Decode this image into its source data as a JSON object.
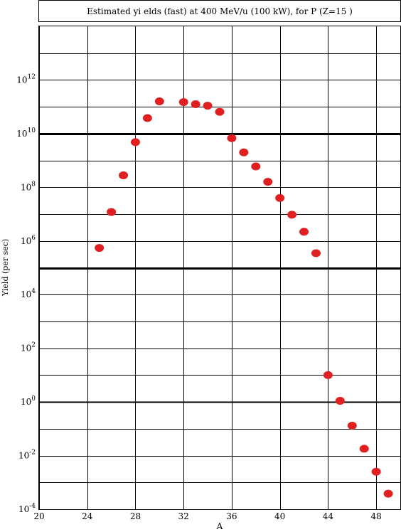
{
  "chart_data": {
    "type": "scatter",
    "title": "Estimated yi elds (fast) at 400 MeV/u (100 kW), for P (Z=15 )",
    "xlabel": "A",
    "ylabel": "Yield (per sec)",
    "xlim": [
      20,
      50
    ],
    "ylim_log10": [
      -4,
      14
    ],
    "y_scale": "log",
    "grid": true,
    "x_ticks": [
      20,
      24,
      28,
      32,
      36,
      40,
      44,
      48
    ],
    "y_ticks": [
      {
        "base": "10",
        "exp": "12",
        "log": 12
      },
      {
        "base": "10",
        "exp": "10",
        "log": 10
      },
      {
        "base": "10",
        "exp": "8",
        "log": 8
      },
      {
        "base": "10",
        "exp": "6",
        "log": 6
      },
      {
        "base": "10",
        "exp": "4",
        "log": 4
      },
      {
        "base": "10",
        "exp": "2",
        "log": 2
      },
      {
        "base": "10",
        "exp": "0",
        "log": 0
      },
      {
        "base": "10",
        "exp": "-2",
        "log": -2
      },
      {
        "base": "10",
        "exp": "-4",
        "log": -4
      }
    ],
    "thick_lines_log": [
      10,
      5
    ],
    "medium_lines_log": [
      0
    ],
    "marker_color": "#e02020",
    "points": [
      {
        "A": 25,
        "yield": 550000.0
      },
      {
        "A": 26,
        "yield": 12000000.0
      },
      {
        "A": 27,
        "yield": 280000000.0
      },
      {
        "A": 28,
        "yield": 4800000000.0
      },
      {
        "A": 29,
        "yield": 38000000000.0
      },
      {
        "A": 30,
        "yield": 160000000000.0
      },
      {
        "A": 32,
        "yield": 150000000000.0
      },
      {
        "A": 33,
        "yield": 125000000000.0
      },
      {
        "A": 34,
        "yield": 110000000000.0
      },
      {
        "A": 35,
        "yield": 65000000000.0
      },
      {
        "A": 36,
        "yield": 6800000000.0
      },
      {
        "A": 37,
        "yield": 2000000000.0
      },
      {
        "A": 38,
        "yield": 600000000.0
      },
      {
        "A": 39,
        "yield": 160000000.0
      },
      {
        "A": 40,
        "yield": 40000000.0
      },
      {
        "A": 41,
        "yield": 9500000.0
      },
      {
        "A": 42,
        "yield": 2200000.0
      },
      {
        "A": 43,
        "yield": 350000.0
      },
      {
        "A": 44,
        "yield": 10
      },
      {
        "A": 45,
        "yield": 1.1
      },
      {
        "A": 46,
        "yield": 0.13
      },
      {
        "A": 47,
        "yield": 0.018
      },
      {
        "A": 48,
        "yield": 0.0025
      },
      {
        "A": 49,
        "yield": 0.00038
      }
    ]
  }
}
